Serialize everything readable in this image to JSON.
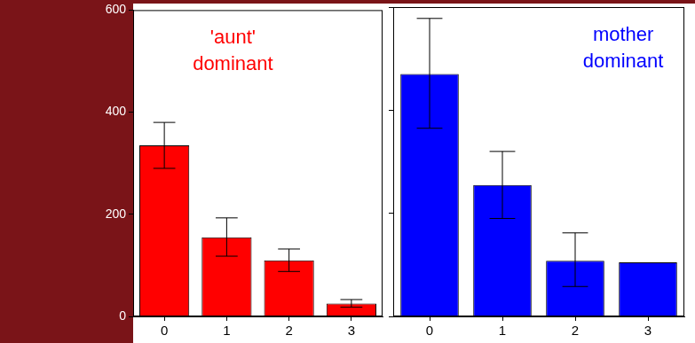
{
  "chart_data": [
    {
      "type": "bar",
      "annotation": [
        "'aunt'",
        "dominant"
      ],
      "categories": [
        "0",
        "1",
        "2",
        "3"
      ],
      "values": [
        335,
        155,
        110,
        25
      ],
      "errors": [
        [
          290,
          380
        ],
        [
          118,
          193
        ],
        [
          88,
          132
        ],
        [
          18,
          33
        ]
      ],
      "color": "#ff0000",
      "ylim": [
        0,
        600
      ],
      "yticks": [
        0,
        200,
        400,
        600
      ],
      "grid": false
    },
    {
      "type": "bar",
      "annotation": [
        "mother",
        "dominant"
      ],
      "categories": [
        "0",
        "1",
        "2",
        "3"
      ],
      "values": [
        470,
        255,
        108,
        105
      ],
      "errors": [
        [
          365,
          578
        ],
        [
          190,
          320
        ],
        [
          58,
          162
        ],
        null
      ],
      "color": "#0000ff",
      "ylim": [
        0,
        600
      ],
      "yticks": [
        0,
        200,
        400,
        600
      ],
      "grid": false,
      "tick_labels": "x"
    }
  ]
}
